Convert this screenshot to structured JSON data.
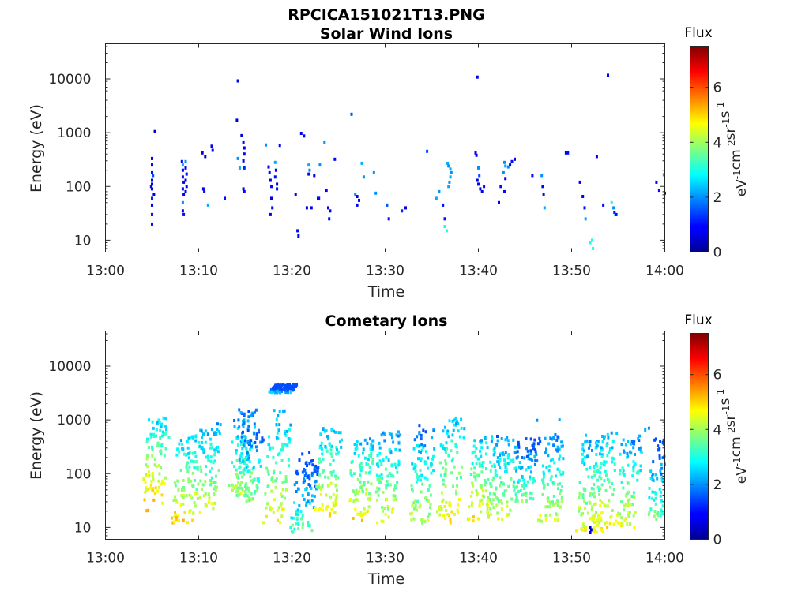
{
  "figure": {
    "title": "RPCICA151021T13.PNG"
  },
  "colorbar": {
    "label": "Flux",
    "unit_parts": [
      "eV",
      "-1",
      "cm",
      "-2",
      "sr",
      "-1",
      "s",
      "-1"
    ],
    "range": [
      0,
      7.5
    ],
    "ticks": [
      "0",
      "2",
      "4",
      "6"
    ],
    "colormap": "jet"
  },
  "chart_data": [
    {
      "type": "heatmap",
      "title": "Solar Wind Ions",
      "xlabel": "Time",
      "ylabel": "Energy (eV)",
      "y_scale": "log",
      "ylim": [
        6,
        45000
      ],
      "x_ticks": [
        "13:00",
        "13:10",
        "13:20",
        "13:30",
        "13:40",
        "13:50",
        "14:00"
      ],
      "y_ticks": [
        "10",
        "100",
        "1000",
        "10000"
      ],
      "points": [
        [
          4.9,
          100,
          1.0
        ],
        [
          5.0,
          110,
          0.8
        ],
        [
          5.0,
          330,
          0.8
        ],
        [
          5.0,
          250,
          0.8
        ],
        [
          5.0,
          180,
          1.0
        ],
        [
          5.0,
          130,
          0.8
        ],
        [
          5.0,
          90,
          1.0
        ],
        [
          5.0,
          60,
          1.2
        ],
        [
          5.0,
          45,
          0.8
        ],
        [
          5.0,
          30,
          1.0
        ],
        [
          5.0,
          20,
          1.0
        ],
        [
          5.1,
          160,
          1.5
        ],
        [
          5.2,
          70,
          0.8
        ],
        [
          5.3,
          1050,
          0.6
        ],
        [
          8.2,
          290,
          0.8
        ],
        [
          8.3,
          250,
          2.2
        ],
        [
          8.3,
          200,
          0.8
        ],
        [
          8.3,
          150,
          1.0
        ],
        [
          8.4,
          120,
          0.8
        ],
        [
          8.3,
          90,
          1.0
        ],
        [
          8.4,
          70,
          0.8
        ],
        [
          8.3,
          50,
          2.0
        ],
        [
          8.3,
          35,
          0.8
        ],
        [
          8.4,
          30,
          1.0
        ],
        [
          8.6,
          290,
          2.0
        ],
        [
          8.6,
          220,
          0.8
        ],
        [
          8.7,
          170,
          1.0
        ],
        [
          8.6,
          130,
          0.8
        ],
        [
          8.7,
          100,
          1.0
        ],
        [
          8.6,
          80,
          0.8
        ],
        [
          10.4,
          420,
          0.8
        ],
        [
          10.5,
          90,
          0.8
        ],
        [
          10.6,
          80,
          1.0
        ],
        [
          10.7,
          360,
          0.6
        ],
        [
          11.0,
          45,
          2.2
        ],
        [
          11.4,
          560,
          0.8
        ],
        [
          11.5,
          470,
          1.0
        ],
        [
          12.8,
          60,
          1.0
        ],
        [
          14.2,
          9200,
          0.8
        ],
        [
          14.1,
          1700,
          0.6
        ],
        [
          14.2,
          330,
          2.0
        ],
        [
          14.4,
          220,
          2.2
        ],
        [
          14.6,
          880,
          0.6
        ],
        [
          14.8,
          650,
          1.0
        ],
        [
          14.9,
          520,
          0.8
        ],
        [
          14.9,
          400,
          1.0
        ],
        [
          14.8,
          300,
          0.8
        ],
        [
          14.9,
          220,
          1.2
        ],
        [
          14.8,
          90,
          0.8
        ],
        [
          14.9,
          80,
          1.0
        ],
        [
          17.2,
          590,
          2.0
        ],
        [
          17.5,
          230,
          0.8
        ],
        [
          17.6,
          180,
          1.0
        ],
        [
          17.7,
          130,
          0.8
        ],
        [
          17.8,
          100,
          1.0
        ],
        [
          17.8,
          60,
          0.8
        ],
        [
          17.9,
          40,
          1.0
        ],
        [
          17.7,
          30,
          0.8
        ],
        [
          18.2,
          280,
          2.2
        ],
        [
          18.3,
          200,
          0.8
        ],
        [
          18.2,
          150,
          1.0
        ],
        [
          18.4,
          110,
          0.8
        ],
        [
          18.4,
          90,
          1.0
        ],
        [
          18.7,
          580,
          0.8
        ],
        [
          20.4,
          70,
          0.8
        ],
        [
          20.6,
          15,
          1.0
        ],
        [
          20.7,
          12,
          1.0
        ],
        [
          21.0,
          970,
          0.8
        ],
        [
          21.3,
          870,
          0.8
        ],
        [
          21.8,
          250,
          2.2
        ],
        [
          21.9,
          200,
          2.0
        ],
        [
          21.8,
          170,
          1.0
        ],
        [
          21.6,
          40,
          0.8
        ],
        [
          22.1,
          40,
          0.8
        ],
        [
          22.4,
          160,
          0.8
        ],
        [
          22.8,
          60,
          0.8
        ],
        [
          22.9,
          60,
          1.0
        ],
        [
          23.0,
          250,
          2.0
        ],
        [
          23.5,
          650,
          2.0
        ],
        [
          23.7,
          85,
          0.8
        ],
        [
          23.9,
          40,
          0.8
        ],
        [
          24.0,
          25,
          1.0
        ],
        [
          24.1,
          35,
          0.8
        ],
        [
          24.6,
          320,
          1.0
        ],
        [
          26.4,
          2200,
          1.5
        ],
        [
          26.8,
          70,
          2.0
        ],
        [
          27.0,
          65,
          0.8
        ],
        [
          27.2,
          55,
          1.0
        ],
        [
          27.0,
          45,
          0.8
        ],
        [
          27.5,
          270,
          2.2
        ],
        [
          27.7,
          150,
          2.0
        ],
        [
          28.8,
          180,
          2.0
        ],
        [
          29.0,
          75,
          2.0
        ],
        [
          30.2,
          45,
          1.5
        ],
        [
          30.4,
          25,
          1.0
        ],
        [
          31.8,
          35,
          1.2
        ],
        [
          32.2,
          40,
          0.8
        ],
        [
          34.5,
          450,
          1.5
        ],
        [
          35.5,
          60,
          2.2
        ],
        [
          35.8,
          80,
          2.0
        ],
        [
          36.2,
          45,
          1.0
        ],
        [
          36.4,
          18,
          3.0
        ],
        [
          36.6,
          15,
          3.0
        ],
        [
          36.4,
          25,
          1.0
        ],
        [
          36.7,
          270,
          2.2
        ],
        [
          36.8,
          240,
          2.0
        ],
        [
          37.0,
          210,
          2.2
        ],
        [
          37.1,
          180,
          2.0
        ],
        [
          37.0,
          150,
          2.2
        ],
        [
          36.9,
          120,
          2.0
        ],
        [
          36.8,
          100,
          2.2
        ],
        [
          39.7,
          420,
          0.8
        ],
        [
          39.8,
          380,
          1.0
        ],
        [
          39.9,
          10800,
          0.8
        ],
        [
          40.0,
          220,
          2.0
        ],
        [
          40.1,
          160,
          1.5
        ],
        [
          39.9,
          130,
          0.8
        ],
        [
          40.0,
          110,
          1.0
        ],
        [
          40.2,
          90,
          0.8
        ],
        [
          40.6,
          100,
          1.0
        ],
        [
          40.4,
          80,
          0.8
        ],
        [
          42.4,
          100,
          1.0
        ],
        [
          42.2,
          50,
          0.8
        ],
        [
          42.8,
          280,
          2.0
        ],
        [
          42.9,
          240,
          2.2
        ],
        [
          42.7,
          180,
          2.0
        ],
        [
          42.9,
          140,
          0.8
        ],
        [
          42.8,
          80,
          1.0
        ],
        [
          43.2,
          230,
          2.0
        ],
        [
          43.4,
          250,
          0.8
        ],
        [
          43.6,
          290,
          1.0
        ],
        [
          43.9,
          320,
          0.8
        ],
        [
          45.8,
          160,
          1.0
        ],
        [
          46.8,
          160,
          2.0
        ],
        [
          46.9,
          100,
          0.8
        ],
        [
          47.0,
          70,
          1.0
        ],
        [
          47.1,
          40,
          2.2
        ],
        [
          49.4,
          420,
          0.8
        ],
        [
          49.6,
          420,
          1.0
        ],
        [
          50.9,
          120,
          0.8
        ],
        [
          51.2,
          65,
          0.8
        ],
        [
          51.4,
          40,
          1.0
        ],
        [
          51.5,
          25,
          2.2
        ],
        [
          52.2,
          10,
          3.0
        ],
        [
          52.0,
          9,
          3.0
        ],
        [
          52.3,
          7,
          3.0
        ],
        [
          52.7,
          360,
          0.8
        ],
        [
          53.4,
          45,
          1.0
        ],
        [
          53.9,
          11700,
          0.8
        ],
        [
          54.3,
          50,
          3.0
        ],
        [
          54.5,
          40,
          2.0
        ],
        [
          54.6,
          33,
          1.0
        ],
        [
          54.7,
          30,
          2.0
        ],
        [
          54.8,
          30,
          1.0
        ],
        [
          59.1,
          120,
          0.8
        ],
        [
          59.4,
          85,
          1.0
        ],
        [
          59.9,
          165,
          2.2
        ],
        [
          60.0,
          75,
          1.0
        ]
      ]
    },
    {
      "type": "heatmap",
      "title": "Cometary Ions",
      "xlabel": "Time",
      "ylabel": "Energy (eV)",
      "y_scale": "log",
      "ylim": [
        6,
        45000
      ],
      "x_ticks": [
        "13:00",
        "13:10",
        "13:20",
        "13:30",
        "13:40",
        "13:50",
        "14:00"
      ],
      "y_ticks": [
        "10",
        "100",
        "1000",
        "10000"
      ],
      "bursts": [
        {
          "t": 5.0,
          "lo": 20,
          "hi": 1100,
          "peak": 5.2
        },
        {
          "t": 8.2,
          "lo": 12,
          "hi": 520,
          "peak": 5.0
        },
        {
          "t": 10.6,
          "lo": 18,
          "hi": 850,
          "peak": 4.6
        },
        {
          "t": 14.3,
          "lo": 40,
          "hi": 1700,
          "peak": 4.3
        },
        {
          "t": 15.1,
          "lo": 30,
          "hi": 700,
          "peak": 4.0
        },
        {
          "t": 18.1,
          "lo": 12,
          "hi": 1500,
          "peak": 4.7
        },
        {
          "t": 18.7,
          "lo": 3200,
          "hi": 4600,
          "peak": 2.5
        },
        {
          "t": 21.0,
          "lo": 8,
          "hi": 250,
          "peak": 3.5
        },
        {
          "t": 23.5,
          "lo": 16,
          "hi": 700,
          "peak": 4.8
        },
        {
          "t": 27.0,
          "lo": 12,
          "hi": 480,
          "peak": 4.9
        },
        {
          "t": 29.8,
          "lo": 12,
          "hi": 620,
          "peak": 4.6
        },
        {
          "t": 33.6,
          "lo": 12,
          "hi": 800,
          "peak": 4.3
        },
        {
          "t": 36.6,
          "lo": 12,
          "hi": 1150,
          "peak": 4.8
        },
        {
          "t": 39.9,
          "lo": 12,
          "hi": 500,
          "peak": 4.9
        },
        {
          "t": 42.2,
          "lo": 14,
          "hi": 500,
          "peak": 4.5
        },
        {
          "t": 44.7,
          "lo": 30,
          "hi": 450,
          "peak": 3.8
        },
        {
          "t": 47.6,
          "lo": 12,
          "hi": 550,
          "peak": 4.4
        },
        {
          "t": 51.6,
          "lo": 8,
          "hi": 520,
          "peak": 4.6
        },
        {
          "t": 53.1,
          "lo": 8,
          "hi": 600,
          "peak": 4.8
        },
        {
          "t": 55.7,
          "lo": 10,
          "hi": 450,
          "peak": 4.6
        },
        {
          "t": 59.2,
          "lo": 14,
          "hi": 450,
          "peak": 3.7
        }
      ],
      "points": [
        [
          52.0,
          10,
          0.6
        ],
        [
          52.0,
          8,
          0.8
        ],
        [
          52.1,
          9,
          0.6
        ],
        [
          46.3,
          980,
          2.0
        ],
        [
          48.7,
          1000,
          2.2
        ],
        [
          57.3,
          500,
          2.2
        ],
        [
          58.3,
          700,
          2.0
        ],
        [
          57.9,
          650,
          2.2
        ]
      ]
    }
  ]
}
